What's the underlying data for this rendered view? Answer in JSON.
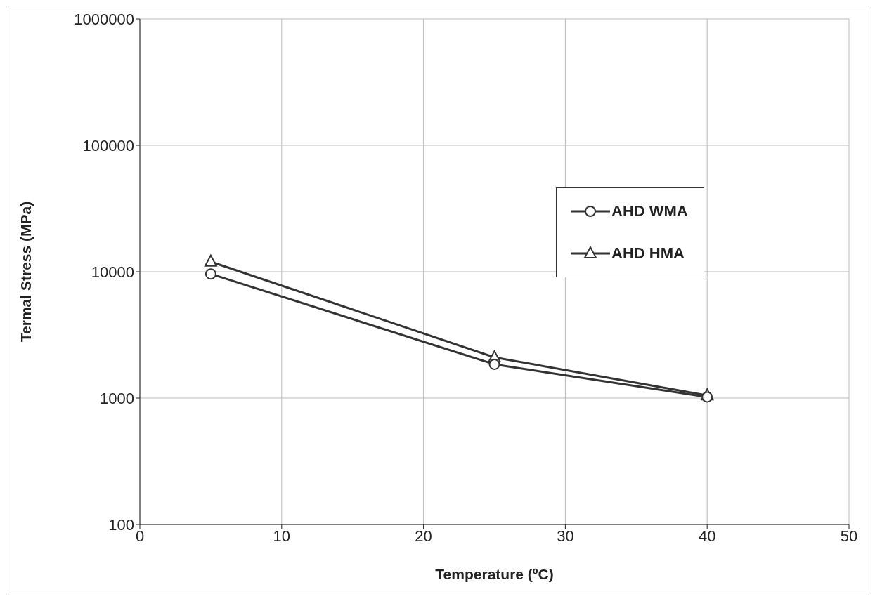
{
  "chart_data": {
    "type": "line",
    "xlabel": "Temperature (ºC)",
    "ylabel": "Termal Stress (MPa)",
    "x": [
      5,
      25,
      40
    ],
    "series": [
      {
        "name": "AHD WMA",
        "color": "#333333",
        "marker": "circle",
        "values": [
          9600,
          1850,
          1020
        ]
      },
      {
        "name": "AHD HMA",
        "color": "#333333",
        "marker": "triangle",
        "values": [
          12000,
          2100,
          1050
        ]
      }
    ],
    "xlim": [
      0,
      50
    ],
    "xticks": [
      0,
      10,
      20,
      30,
      40,
      50
    ],
    "ylim": [
      100,
      1000000
    ],
    "yticks": [
      100,
      1000,
      10000,
      100000,
      1000000
    ],
    "log": "y",
    "grid": true,
    "legend": "right",
    "line_style": "solid"
  }
}
